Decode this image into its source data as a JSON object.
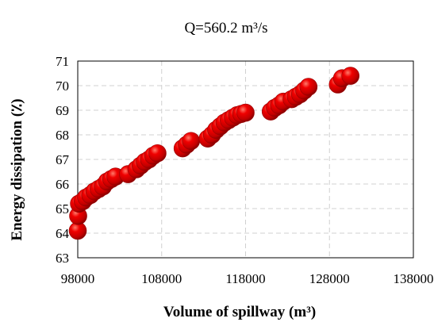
{
  "chart_data": {
    "type": "scatter",
    "title": "Q=560.2 m³/s",
    "xlabel": "Volume of spillway (m³)",
    "ylabel": "Energy dissipation (٪)",
    "xlim": [
      98000,
      138000
    ],
    "ylim": [
      63,
      71
    ],
    "xticks": [
      "98000",
      "108000",
      "118000",
      "128000",
      "138000"
    ],
    "yticks": [
      "63",
      "64",
      "65",
      "66",
      "67",
      "68",
      "69",
      "70",
      "71"
    ],
    "grid": true,
    "marker_color": "#e00000",
    "series": [
      {
        "x": [
          98000,
          98050,
          98150,
          98600,
          99000,
          99500,
          100000,
          100500,
          101000,
          101500,
          102000,
          102500,
          104000,
          105000,
          105500,
          106000,
          106500,
          107000,
          107500,
          110500,
          111000,
          111500,
          113500,
          114000,
          114500,
          115000,
          115500,
          116000,
          116500,
          117000,
          117500,
          118000,
          121000,
          121500,
          122000,
          122500,
          123500,
          124000,
          124500,
          125000,
          125500,
          129000,
          129500,
          130500
        ],
        "y": [
          64.1,
          64.7,
          65.2,
          65.3,
          65.45,
          65.55,
          65.7,
          65.8,
          65.9,
          66.1,
          66.2,
          66.3,
          66.4,
          66.6,
          66.75,
          66.9,
          67.0,
          67.15,
          67.25,
          67.45,
          67.6,
          67.75,
          67.85,
          68.0,
          68.2,
          68.35,
          68.5,
          68.6,
          68.7,
          68.8,
          68.85,
          68.9,
          68.95,
          69.1,
          69.2,
          69.35,
          69.45,
          69.55,
          69.65,
          69.8,
          69.95,
          70.05,
          70.3,
          70.4
        ]
      }
    ]
  }
}
